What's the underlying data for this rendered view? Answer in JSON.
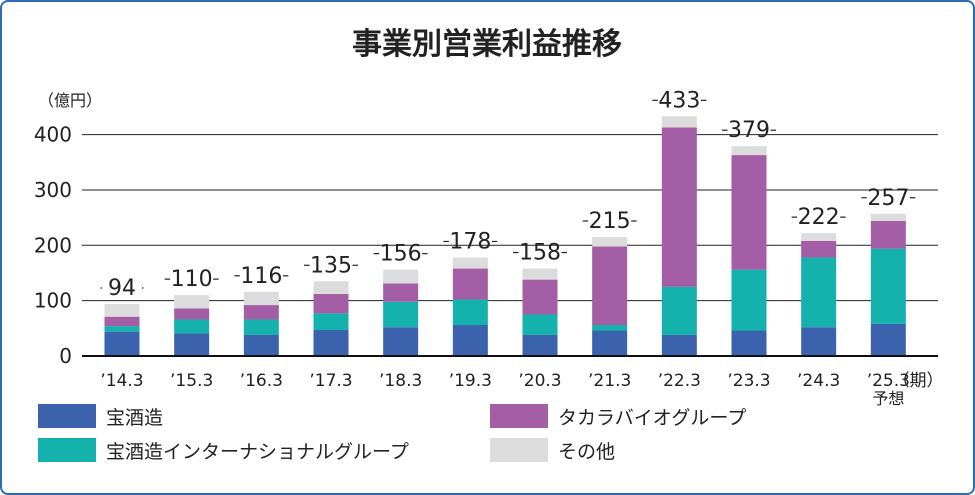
{
  "chart_data": {
    "type": "bar",
    "stacked": true,
    "title": "事業別営業利益推移",
    "ylabel": "（億円）",
    "xlabel": "（期）",
    "ylim": [
      0,
      450
    ],
    "yticks": [
      0,
      100,
      200,
      300,
      400
    ],
    "grid": true,
    "legend_position": "bottom",
    "categories": [
      "’14.3",
      "’15.3",
      "’16.3",
      "’17.3",
      "’18.3",
      "’19.3",
      "’20.3",
      "’21.3",
      "’22.3",
      "’23.3",
      "’24.3",
      "’25.3"
    ],
    "category_note": {
      "index": 11,
      "text": "予想"
    },
    "totals": [
      94,
      110,
      116,
      135,
      156,
      178,
      158,
      215,
      433,
      379,
      222,
      257
    ],
    "series": [
      {
        "name": "宝酒造",
        "color": "#3b62ad",
        "values": [
          44,
          41,
          38,
          47,
          52,
          56,
          38,
          46,
          38,
          46,
          52,
          58
        ]
      },
      {
        "name": "宝酒造インターナショナルグループ",
        "color": "#14b1ad",
        "values": [
          10,
          25,
          28,
          30,
          46,
          46,
          37,
          10,
          87,
          110,
          126,
          136
        ]
      },
      {
        "name": "タカラバイオグループ",
        "color": "#a35ea6",
        "values": [
          17,
          20,
          26,
          35,
          33,
          56,
          63,
          142,
          288,
          207,
          30,
          50
        ]
      },
      {
        "name": "その他",
        "color": "#dcdcdc",
        "values": [
          23,
          24,
          24,
          23,
          25,
          20,
          20,
          17,
          20,
          16,
          14,
          13
        ]
      }
    ]
  }
}
